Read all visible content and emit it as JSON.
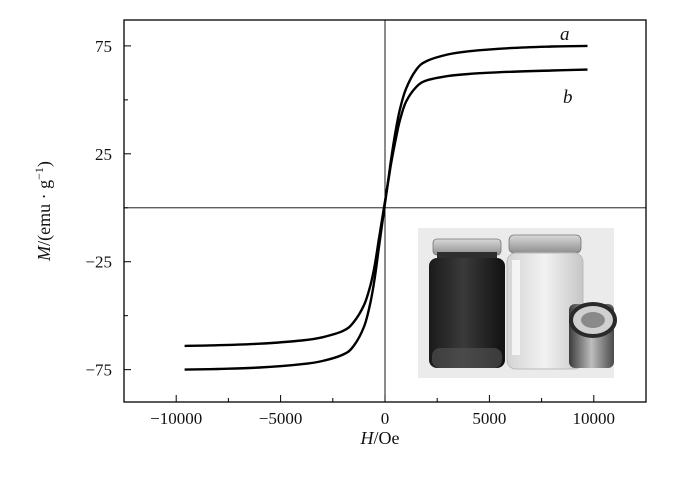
{
  "chart_data": {
    "type": "line",
    "title": "",
    "xlabel": {
      "symbol": "H",
      "unit": "/Oe"
    },
    "ylabel": {
      "symbol": "M",
      "unit": "/(emu · g",
      "exp": "−1",
      "close": ")"
    },
    "xlim": [
      -12500,
      12500
    ],
    "ylim": [
      -90,
      87
    ],
    "x_ticks": [
      -10000,
      -5000,
      0,
      5000,
      10000
    ],
    "x_tick_labels": [
      "−10000",
      "−5000",
      "0",
      "5000",
      "10000"
    ],
    "y_ticks": [
      -75,
      -25,
      25,
      75
    ],
    "y_tick_labels": [
      "−75",
      "−25",
      "25",
      "75"
    ],
    "grid": false,
    "legend": "none",
    "reference_lines": {
      "x": 0,
      "y": 0
    },
    "series": [
      {
        "name": "a",
        "color": "#000000",
        "x": [
          -9600,
          -8000,
          -6000,
          -4000,
          -3000,
          -2000,
          -1500,
          -1000,
          -700,
          -500,
          -300,
          -200,
          -100,
          0,
          100,
          200,
          300,
          500,
          700,
          1000,
          1500,
          2000,
          3000,
          4000,
          6000,
          8000,
          9700
        ],
        "y": [
          -75,
          -74.7,
          -74,
          -72.5,
          -71,
          -68,
          -64,
          -55,
          -44,
          -33,
          -19,
          -12,
          -5,
          2,
          9,
          16,
          23,
          35,
          45,
          55,
          64,
          68,
          71,
          72.5,
          74,
          74.7,
          75
        ]
      },
      {
        "name": "b",
        "color": "#000000",
        "x": [
          -9600,
          -8000,
          -6000,
          -4000,
          -3000,
          -2000,
          -1500,
          -1000,
          -700,
          -500,
          -300,
          -200,
          -100,
          0,
          100,
          200,
          300,
          500,
          700,
          1000,
          1500,
          2000,
          3000,
          4000,
          6000,
          8000,
          9700
        ],
        "y": [
          -64,
          -63.7,
          -63,
          -61.5,
          -60,
          -57,
          -53,
          -45,
          -36,
          -27,
          -15,
          -9,
          -3,
          3,
          9,
          15,
          21,
          31,
          40,
          49,
          56,
          59,
          61,
          62,
          63,
          63.6,
          64
        ]
      }
    ],
    "inset": {
      "type": "photo",
      "description_visible": "two glass vials and a magnet"
    }
  }
}
